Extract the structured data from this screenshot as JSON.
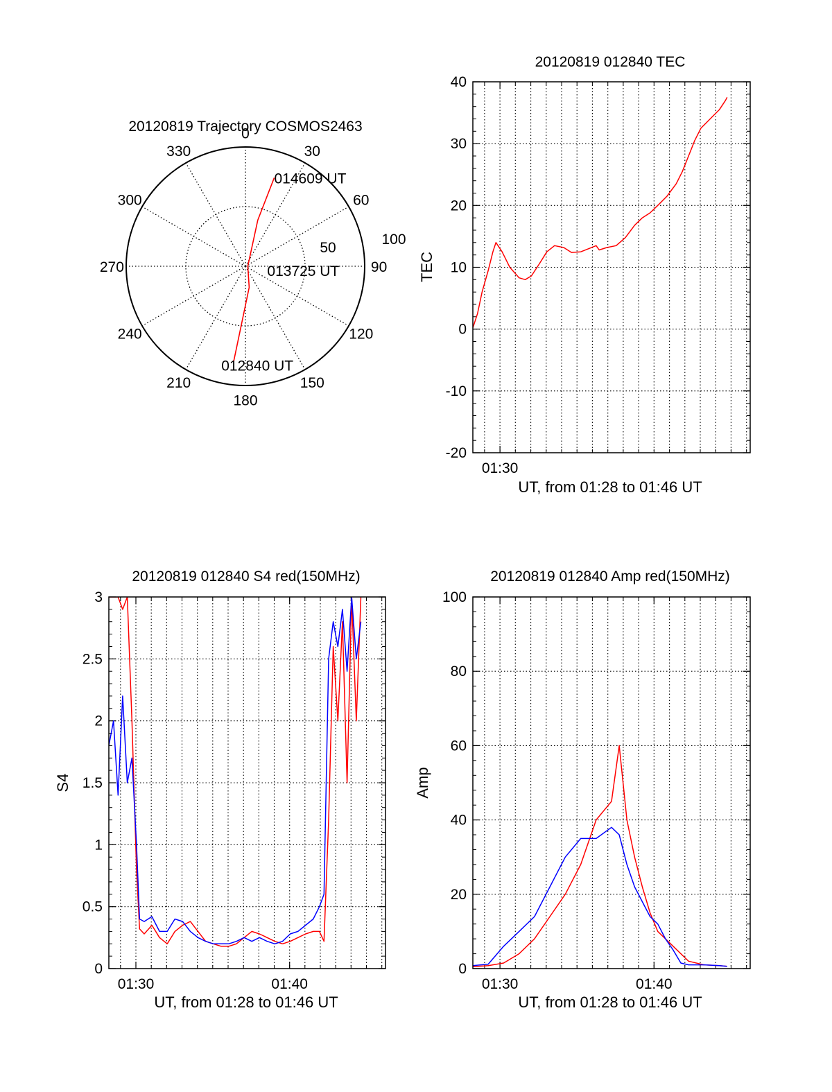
{
  "colors": {
    "red_series": "#ff0000",
    "blue_series": "#0000ff",
    "axes": "#000000",
    "grid": "#000000"
  },
  "chart_data": [
    {
      "id": "polar",
      "type": "polar_trajectory",
      "title": "20120819 Trajectory COSMOS2463",
      "azimuth_labels": [
        "0",
        "30",
        "60",
        "90",
        "120",
        "150",
        "180",
        "210",
        "240",
        "270",
        "300",
        "330"
      ],
      "radius_labels": [
        "50",
        "100"
      ],
      "grid": true,
      "trajectory": {
        "points": [
          {
            "az": 187,
            "r": 80
          },
          {
            "az": 170,
            "r": 18
          },
          {
            "az": 90,
            "r": 2
          },
          {
            "az": 15,
            "r": 40
          },
          {
            "az": 18,
            "r": 78
          }
        ]
      },
      "annotations": [
        {
          "text": "014609 UT",
          "az": 18,
          "r": 78
        },
        {
          "text": "013725 UT",
          "az": 90,
          "r": 2
        },
        {
          "text": "012840 UT",
          "az": 187,
          "r": 80
        }
      ]
    },
    {
      "id": "tec",
      "type": "line",
      "title": "20120819 012840 TEC",
      "ylabel": "TEC",
      "xlabel": "UT, from 01:28 to 01:46 UT",
      "ylim": [
        -20,
        40
      ],
      "yticks": [
        "-20",
        "-10",
        "0",
        "10",
        "20",
        "30",
        "40"
      ],
      "xticks": [
        {
          "label": "01:30",
          "minute": 1.76
        }
      ],
      "grid": true,
      "series": [
        {
          "points": [
            [
              0.0,
              0.2
            ],
            [
              0.3,
              2.5
            ],
            [
              0.6,
              6.0
            ],
            [
              1.0,
              9.5
            ],
            [
              1.3,
              12.5
            ],
            [
              1.5,
              14.0
            ],
            [
              1.9,
              12.5
            ],
            [
              2.4,
              10.0
            ],
            [
              3.0,
              8.3
            ],
            [
              3.4,
              8.0
            ],
            [
              3.8,
              8.6
            ],
            [
              4.3,
              10.5
            ],
            [
              4.8,
              12.5
            ],
            [
              5.3,
              13.5
            ],
            [
              5.9,
              13.2
            ],
            [
              6.4,
              12.4
            ],
            [
              7.0,
              12.5
            ],
            [
              7.6,
              13.1
            ],
            [
              8.0,
              13.5
            ],
            [
              8.2,
              12.8
            ],
            [
              8.7,
              13.2
            ],
            [
              9.3,
              13.5
            ],
            [
              9.9,
              14.8
            ],
            [
              10.5,
              16.8
            ],
            [
              11.0,
              18.0
            ],
            [
              11.5,
              18.8
            ],
            [
              12.0,
              20.0
            ],
            [
              12.6,
              21.5
            ],
            [
              13.2,
              23.5
            ],
            [
              13.6,
              25.5
            ],
            [
              14.0,
              28.0
            ],
            [
              14.4,
              30.5
            ],
            [
              14.8,
              32.5
            ],
            [
              15.2,
              33.5
            ],
            [
              15.6,
              34.5
            ],
            [
              16.0,
              35.5
            ],
            [
              16.4,
              37.0
            ],
            [
              16.5,
              37.5
            ]
          ]
        }
      ]
    },
    {
      "id": "s4",
      "type": "line",
      "title": "20120819 012840 S4 red(150MHz)",
      "ylabel": "S4",
      "xlabel": "UT, from 01:28 to 01:46 UT",
      "ylim": [
        0,
        3
      ],
      "yticks": [
        "0",
        "0.5",
        "1",
        "1.5",
        "2",
        "2.5",
        "3"
      ],
      "xticks": [
        {
          "label": "01:30",
          "minute": 1.76
        },
        {
          "label": "01:40",
          "minute": 11.76
        }
      ],
      "grid": true,
      "series": [
        {
          "color_key": "red_series",
          "points": [
            [
              0.0,
              3.0
            ],
            [
              0.3,
              3.0
            ],
            [
              0.6,
              3.0
            ],
            [
              0.9,
              2.9
            ],
            [
              1.2,
              3.0
            ],
            [
              1.5,
              2.0
            ],
            [
              1.8,
              0.8
            ],
            [
              2.0,
              0.32
            ],
            [
              2.3,
              0.28
            ],
            [
              2.8,
              0.35
            ],
            [
              3.3,
              0.25
            ],
            [
              3.8,
              0.2
            ],
            [
              4.3,
              0.3
            ],
            [
              4.8,
              0.35
            ],
            [
              5.3,
              0.38
            ],
            [
              5.8,
              0.3
            ],
            [
              6.3,
              0.22
            ],
            [
              6.8,
              0.2
            ],
            [
              7.3,
              0.18
            ],
            [
              7.8,
              0.18
            ],
            [
              8.3,
              0.2
            ],
            [
              8.8,
              0.25
            ],
            [
              9.3,
              0.3
            ],
            [
              9.8,
              0.28
            ],
            [
              10.3,
              0.25
            ],
            [
              10.8,
              0.22
            ],
            [
              11.3,
              0.2
            ],
            [
              11.8,
              0.22
            ],
            [
              12.3,
              0.25
            ],
            [
              12.8,
              0.28
            ],
            [
              13.3,
              0.3
            ],
            [
              13.7,
              0.3
            ],
            [
              14.0,
              0.22
            ],
            [
              14.3,
              1.2
            ],
            [
              14.6,
              2.6
            ],
            [
              14.9,
              2.0
            ],
            [
              15.2,
              2.8
            ],
            [
              15.5,
              1.5
            ],
            [
              15.8,
              3.0
            ],
            [
              16.1,
              2.0
            ],
            [
              16.4,
              3.0
            ]
          ]
        },
        {
          "color_key": "blue_series",
          "points": [
            [
              0.0,
              1.8
            ],
            [
              0.3,
              2.0
            ],
            [
              0.6,
              1.4
            ],
            [
              0.9,
              2.2
            ],
            [
              1.2,
              1.5
            ],
            [
              1.5,
              1.7
            ],
            [
              1.8,
              1.0
            ],
            [
              2.0,
              0.4
            ],
            [
              2.3,
              0.38
            ],
            [
              2.8,
              0.42
            ],
            [
              3.3,
              0.3
            ],
            [
              3.8,
              0.3
            ],
            [
              4.3,
              0.4
            ],
            [
              4.8,
              0.38
            ],
            [
              5.3,
              0.3
            ],
            [
              5.8,
              0.25
            ],
            [
              6.3,
              0.22
            ],
            [
              6.8,
              0.2
            ],
            [
              7.3,
              0.2
            ],
            [
              7.8,
              0.2
            ],
            [
              8.3,
              0.22
            ],
            [
              8.8,
              0.25
            ],
            [
              9.3,
              0.22
            ],
            [
              9.8,
              0.25
            ],
            [
              10.3,
              0.22
            ],
            [
              10.8,
              0.2
            ],
            [
              11.3,
              0.22
            ],
            [
              11.8,
              0.28
            ],
            [
              12.3,
              0.3
            ],
            [
              12.8,
              0.35
            ],
            [
              13.3,
              0.4
            ],
            [
              13.7,
              0.5
            ],
            [
              14.0,
              0.6
            ],
            [
              14.3,
              2.5
            ],
            [
              14.6,
              2.8
            ],
            [
              14.9,
              2.6
            ],
            [
              15.2,
              2.9
            ],
            [
              15.5,
              2.4
            ],
            [
              15.8,
              3.0
            ],
            [
              16.1,
              2.5
            ],
            [
              16.4,
              2.8
            ]
          ]
        }
      ]
    },
    {
      "id": "amp",
      "type": "line",
      "title": "20120819 012840 Amp red(150MHz)",
      "ylabel": "Amp",
      "xlabel": "UT, from 01:28 to 01:46 UT",
      "ylim": [
        0,
        100
      ],
      "yticks": [
        "0",
        "20",
        "40",
        "60",
        "80",
        "100"
      ],
      "xticks": [
        {
          "label": "01:30",
          "minute": 1.76
        },
        {
          "label": "01:40",
          "minute": 11.76
        }
      ],
      "grid": true,
      "series": [
        {
          "color_key": "red_series",
          "points": [
            [
              0.0,
              0.5
            ],
            [
              1.0,
              0.8
            ],
            [
              2.0,
              1.5
            ],
            [
              3.0,
              4.0
            ],
            [
              4.0,
              8.0
            ],
            [
              5.0,
              14.0
            ],
            [
              6.0,
              20.0
            ],
            [
              7.0,
              28.0
            ],
            [
              8.0,
              40.0
            ],
            [
              9.0,
              45.0
            ],
            [
              9.5,
              60.0
            ],
            [
              10.0,
              40.0
            ],
            [
              10.5,
              30.0
            ],
            [
              11.0,
              22.0
            ],
            [
              11.5,
              15.0
            ],
            [
              12.0,
              10.0
            ],
            [
              12.5,
              8.0
            ],
            [
              13.0,
              6.0
            ],
            [
              13.5,
              4.0
            ],
            [
              14.0,
              2.0
            ],
            [
              15.0,
              1.0
            ],
            [
              16.0,
              0.8
            ],
            [
              16.5,
              0.6
            ]
          ]
        },
        {
          "color_key": "blue_series",
          "points": [
            [
              0.0,
              0.8
            ],
            [
              1.0,
              1.2
            ],
            [
              2.0,
              6.0
            ],
            [
              3.0,
              10.0
            ],
            [
              4.0,
              14.0
            ],
            [
              5.0,
              22.0
            ],
            [
              6.0,
              30.0
            ],
            [
              7.0,
              35.0
            ],
            [
              8.0,
              35.0
            ],
            [
              9.0,
              38.0
            ],
            [
              9.5,
              36.0
            ],
            [
              10.0,
              28.0
            ],
            [
              10.5,
              22.0
            ],
            [
              11.0,
              18.0
            ],
            [
              11.5,
              14.0
            ],
            [
              12.0,
              12.0
            ],
            [
              12.5,
              8.0
            ],
            [
              13.0,
              5.0
            ],
            [
              13.5,
              1.5
            ],
            [
              14.0,
              1.0
            ],
            [
              15.0,
              1.0
            ],
            [
              16.0,
              0.8
            ],
            [
              16.5,
              0.6
            ]
          ]
        }
      ]
    }
  ]
}
